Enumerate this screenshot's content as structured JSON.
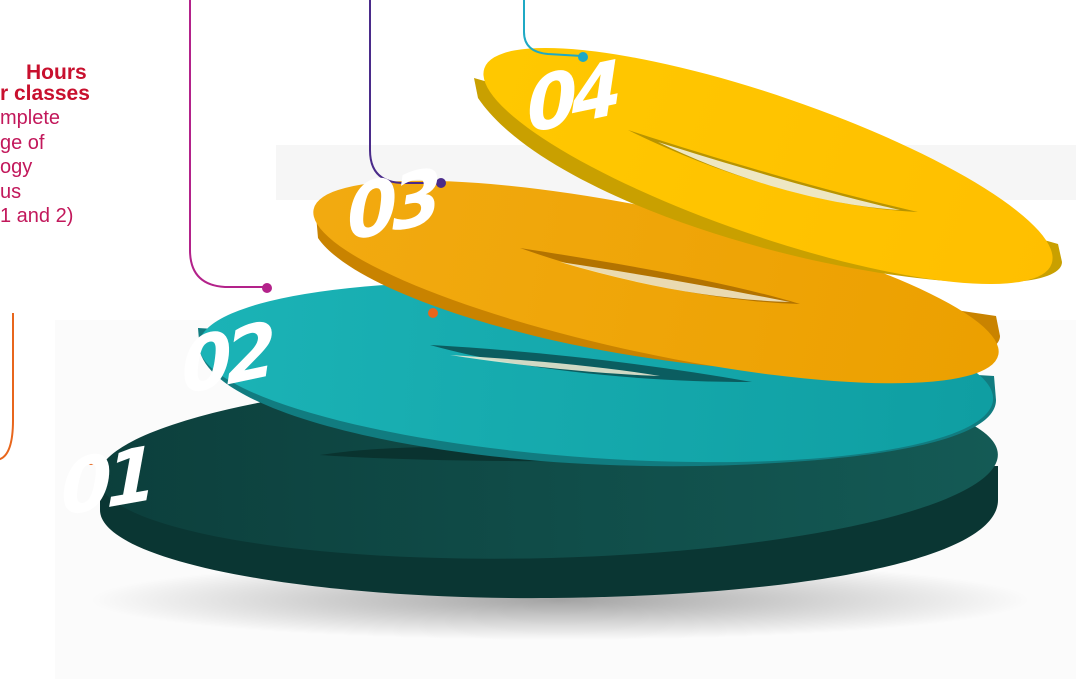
{
  "callout": {
    "title_lines": [
      "Hours",
      "r classes"
    ],
    "body": "mplete\nge of\nogy\nus\n 1 and 2)"
  },
  "layers": [
    {
      "label": "01",
      "color": "#0f4e4a",
      "side": "#0a3633",
      "connector": "#e8661c"
    },
    {
      "label": "02",
      "color": "#1aa9ad",
      "side": "#117c80",
      "connector": "#b3228a"
    },
    {
      "label": "03",
      "color": "#f0a500",
      "side": "#c98300",
      "connector": "#4a2b8a"
    },
    {
      "label": "04",
      "color": "#ffc400",
      "side": "#c9a000",
      "connector": "#1fa9c4"
    }
  ]
}
